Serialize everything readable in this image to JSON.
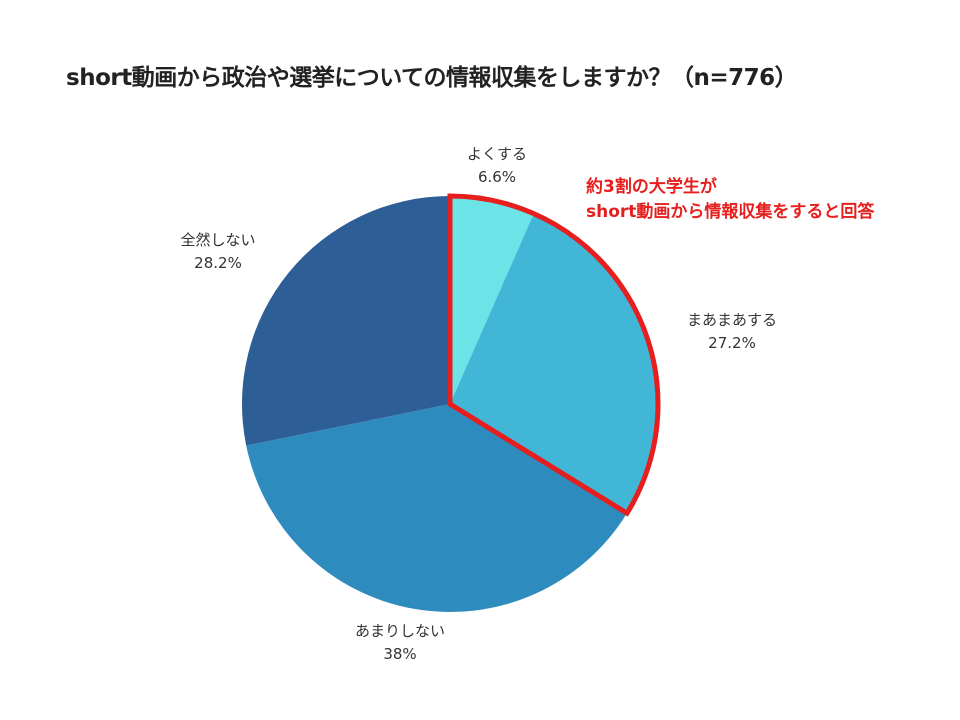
{
  "chart_data": {
    "type": "pie",
    "title": "short動画から政治や選挙についての情報収集をしますか？（n=776）",
    "slices": [
      {
        "label": "よくする",
        "value": 6.6,
        "value_label": "6.6%",
        "color": "#6ce3e6"
      },
      {
        "label": "まあまあする",
        "value": 27.2,
        "value_label": "27.2%",
        "color": "#41b6d7"
      },
      {
        "label": "あまりしない",
        "value": 38,
        "value_label": "38%",
        "color": "#2e8bbd"
      },
      {
        "label": "全然しない",
        "value": 28.2,
        "value_label": "28.2%",
        "color": "#2e5e96"
      }
    ],
    "highlight": {
      "slices": [
        "よくする",
        "まあまあする"
      ],
      "border_color": "#e61e1e"
    },
    "annotation": {
      "line1": "約3割の大学生が",
      "line2": "short動画から情報収集をすると回答",
      "color": "#e61e1e"
    }
  }
}
